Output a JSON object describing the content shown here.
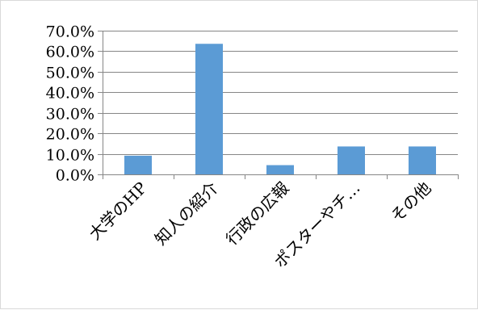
{
  "chart_data": {
    "type": "bar",
    "title": "",
    "xlabel": "",
    "ylabel": "",
    "categories": [
      "大学のHP",
      "知人の紹介",
      "行政の広報",
      "ポスターやチ…",
      "その他"
    ],
    "values": [
      9.1,
      63.6,
      4.5,
      13.6,
      13.6
    ],
    "ylim": [
      0,
      70
    ],
    "yticks": [
      0,
      10,
      20,
      30,
      40,
      50,
      60,
      70
    ],
    "ytick_labels": [
      "0.0%",
      "10.0%",
      "20.0%",
      "30.0%",
      "40.0%",
      "50.0%",
      "60.0%",
      "70.0%"
    ],
    "grid": true,
    "legend": "none",
    "bar_color": "#5b9bd5",
    "grid_color": "#868686"
  }
}
